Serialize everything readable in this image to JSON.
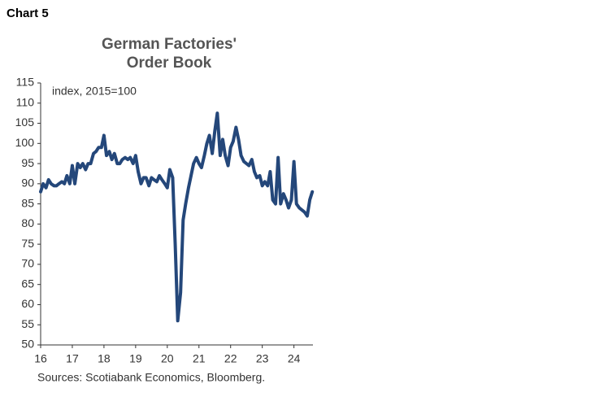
{
  "header": "Chart 5",
  "chart_data": {
    "type": "line",
    "title": [
      "German Factories'",
      "Order Book"
    ],
    "annotation": "index, 2015=100",
    "source": "Sources: Scotiabank Economics, Bloomberg.",
    "x": [
      16.0,
      16.08,
      16.17,
      16.25,
      16.33,
      16.42,
      16.5,
      16.58,
      16.67,
      16.75,
      16.83,
      16.92,
      17.0,
      17.08,
      17.17,
      17.25,
      17.33,
      17.42,
      17.5,
      17.58,
      17.67,
      17.75,
      17.83,
      17.92,
      18.0,
      18.08,
      18.17,
      18.25,
      18.33,
      18.42,
      18.5,
      18.58,
      18.67,
      18.75,
      18.83,
      18.92,
      19.0,
      19.08,
      19.17,
      19.25,
      19.33,
      19.42,
      19.5,
      19.58,
      19.67,
      19.75,
      19.83,
      19.92,
      20.0,
      20.08,
      20.17,
      20.25,
      20.33,
      20.42,
      20.5,
      20.58,
      20.67,
      20.75,
      20.83,
      20.92,
      21.0,
      21.08,
      21.17,
      21.25,
      21.33,
      21.42,
      21.5,
      21.58,
      21.67,
      21.75,
      21.83,
      21.92,
      22.0,
      22.08,
      22.17,
      22.25,
      22.33,
      22.42,
      22.5,
      22.58,
      22.67,
      22.75,
      22.83,
      22.92,
      23.0,
      23.08,
      23.17,
      23.25,
      23.33,
      23.42,
      23.5,
      23.58,
      23.67,
      23.75,
      23.83,
      23.92,
      24.0,
      24.08,
      24.17,
      24.25,
      24.33,
      24.42,
      24.5,
      24.58
    ],
    "series": [
      {
        "name": "Order Book",
        "color": "#24477a",
        "values": [
          88,
          90,
          89,
          91,
          90,
          89.5,
          89.5,
          90,
          90.5,
          90,
          92,
          90,
          94.5,
          90,
          95,
          94,
          95,
          93.5,
          95,
          95,
          97.5,
          98,
          99,
          99,
          102,
          97,
          98,
          96,
          97.5,
          95,
          95,
          96,
          96.5,
          96,
          96.5,
          95,
          97,
          93,
          90,
          91.5,
          91.5,
          89.5,
          91.5,
          91,
          90.5,
          92,
          91,
          90,
          89,
          93.5,
          91.5,
          75,
          56,
          63,
          81,
          85,
          89,
          92,
          95,
          96.5,
          95,
          94,
          97,
          100,
          102,
          97.5,
          103,
          107.5,
          97,
          101,
          97,
          94.5,
          99,
          100.5,
          104,
          101,
          97,
          95.5,
          95,
          94.5,
          96,
          93,
          91.5,
          92,
          89.5,
          90.5,
          89.5,
          93,
          86,
          85,
          96.5,
          85,
          87.5,
          86,
          84,
          86,
          95.5,
          85,
          84,
          83.5,
          83,
          82,
          86,
          88
        ]
      }
    ],
    "xlim": [
      16,
      24.6
    ],
    "xticks": [
      16,
      17,
      18,
      19,
      20,
      21,
      22,
      23,
      24
    ],
    "ylim": [
      50,
      115
    ],
    "yticks": [
      50,
      55,
      60,
      65,
      70,
      75,
      80,
      85,
      90,
      95,
      100,
      105,
      110,
      115
    ],
    "grid": false
  }
}
